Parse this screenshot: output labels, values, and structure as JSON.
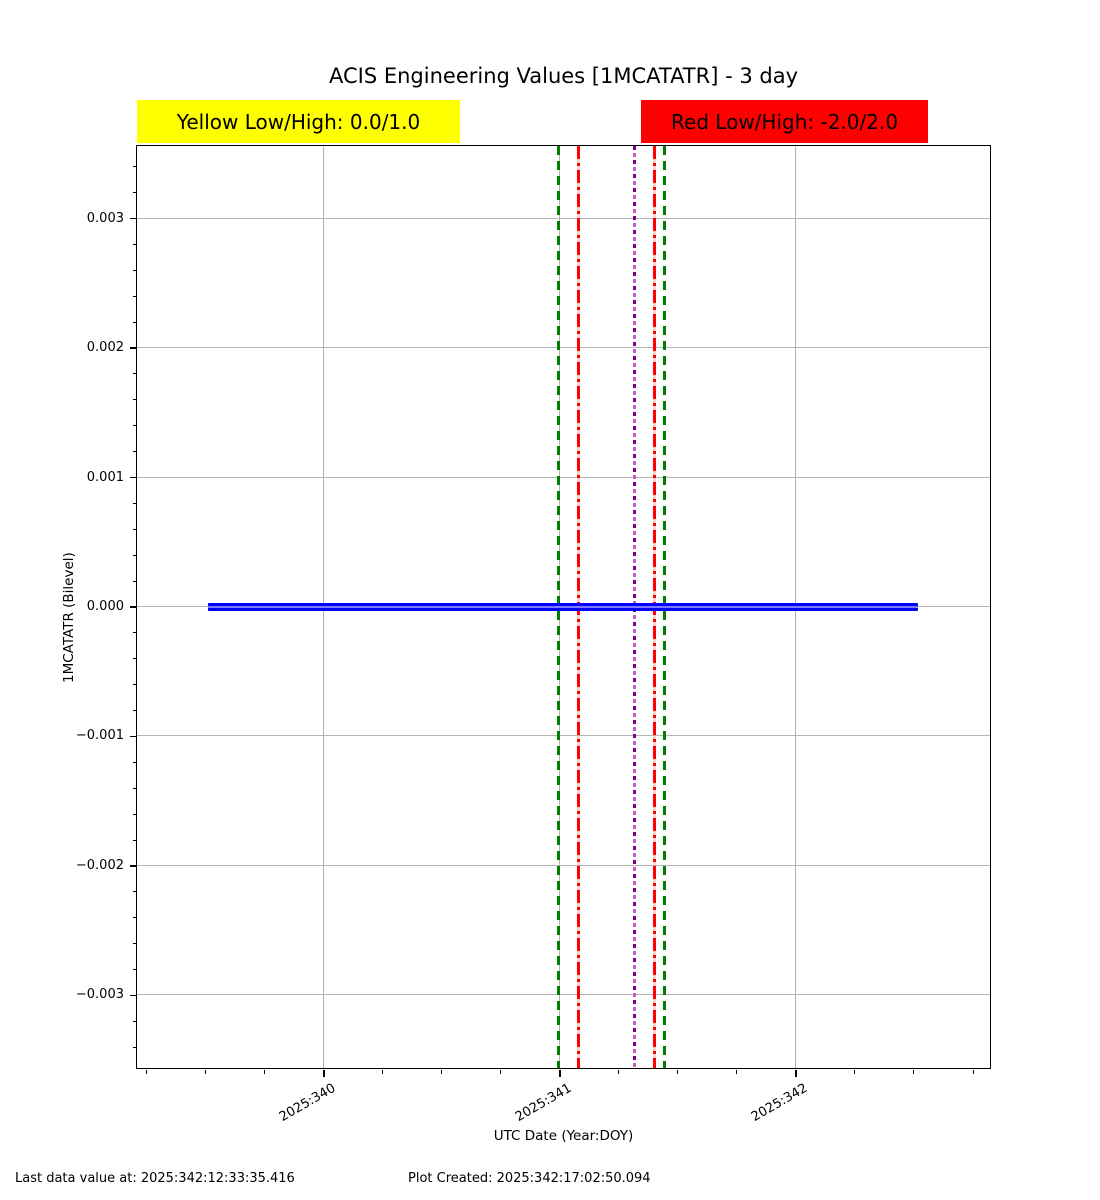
{
  "chart_data": {
    "type": "line",
    "title": "ACIS Engineering Values [1MCATATR] - 3 day",
    "xlabel": "UTC Date (Year:DOY)",
    "ylabel": "1MCATATR (Bilevel)",
    "grid": true,
    "legend_position": "none",
    "xlim": [
      339.208,
      342.822
    ],
    "ylim": [
      -0.00356,
      0.00356
    ],
    "x_ticks": [
      {
        "value": 340,
        "label": "2025:340"
      },
      {
        "value": 341,
        "label": "2025:341"
      },
      {
        "value": 342,
        "label": "2025:342"
      }
    ],
    "x_minor_tick_step_days": 0.25,
    "y_ticks": [
      {
        "value": 0.003,
        "label": "0.003"
      },
      {
        "value": 0.002,
        "label": "0.002"
      },
      {
        "value": 0.001,
        "label": "0.001"
      },
      {
        "value": 0.0,
        "label": "0.000"
      },
      {
        "value": -0.001,
        "label": "−0.001"
      },
      {
        "value": -0.002,
        "label": "−0.002"
      },
      {
        "value": -0.003,
        "label": "−0.003"
      }
    ],
    "y_minor_tick_step": 0.0002,
    "series": [
      {
        "name": "1MCATATR",
        "color": "#0000ff",
        "x_start_doy": 339.51,
        "x_end_doy": 342.521,
        "value": 0.0,
        "description": "constant bilevel value 0 across full 3-day span"
      }
    ],
    "marker_lines": [
      {
        "name": "green-dashed-line-1",
        "x_doy": 340.996,
        "style": "dashed",
        "color": "#008000"
      },
      {
        "name": "red-dashdot-line-1",
        "x_doy": 341.081,
        "style": "dashdot",
        "color": "#ff0000"
      },
      {
        "name": "purple-dotted-line",
        "x_doy": 341.318,
        "style": "dotted",
        "color": "#800080",
        "color2": "#c35ec3"
      },
      {
        "name": "red-dashdot-line-2",
        "x_doy": 341.403,
        "style": "dashdot",
        "color": "#ff0000"
      },
      {
        "name": "green-dashed-line-2",
        "x_doy": 341.445,
        "style": "dashed",
        "color": "#008000"
      }
    ],
    "limit_badges": {
      "yellow": {
        "label": "Yellow Low/High: 0.0/1.0",
        "low": 0.0,
        "high": 1.0,
        "bg": "#ffff00",
        "text_color": "#000000"
      },
      "red": {
        "label": "Red Low/High: -2.0/2.0",
        "low": -2.0,
        "high": 2.0,
        "bg": "#ff0000",
        "text_color": "#000000"
      }
    },
    "colors": {
      "data_line": "#0000ff",
      "gridline": "#b4b4b4",
      "frame": "#000000",
      "background": "#ffffff"
    },
    "footer": {
      "last_data_label": "Last data value at: 2025:342:12:33:35.416",
      "plot_created_label": "Plot Created: 2025:342:17:02:50.094"
    }
  }
}
